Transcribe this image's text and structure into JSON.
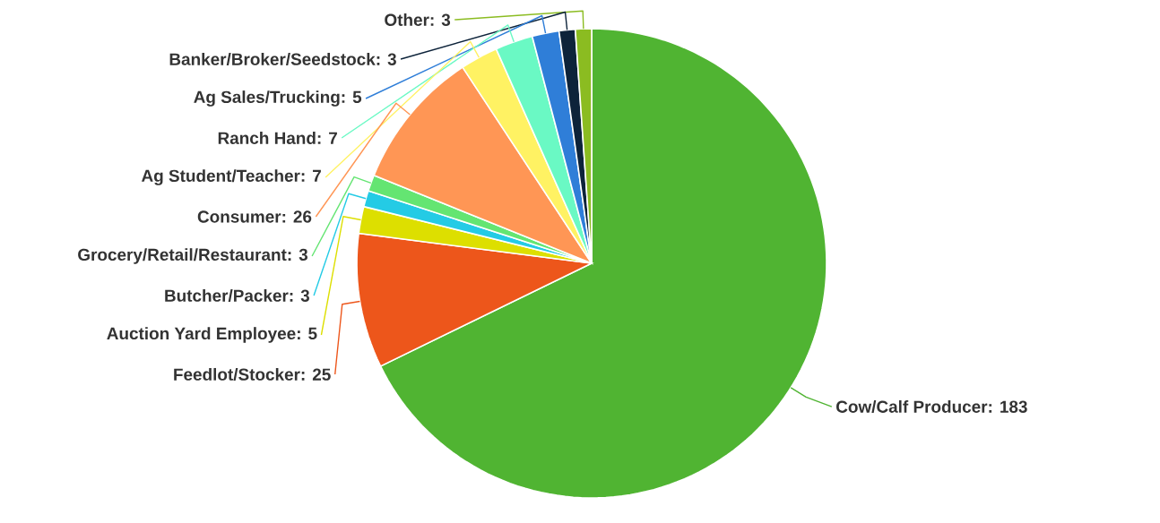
{
  "chart_data": {
    "type": "pie",
    "categories": [
      "Cow/Calf Producer",
      "Feedlot/Stocker",
      "Auction Yard Employee",
      "Butcher/Packer",
      "Grocery/Retail/Restaurant",
      "Consumer",
      "Ag Student/Teacher",
      "Ranch Hand",
      "Ag Sales/Trucking",
      "Banker/Broker/Seedstock",
      "Other"
    ],
    "values": [
      183,
      25,
      5,
      3,
      3,
      26,
      7,
      7,
      5,
      3,
      3
    ],
    "colors": [
      "#50b432",
      "#ed561b",
      "#dddf00",
      "#24cbe5",
      "#64e572",
      "#ff9655",
      "#fff263",
      "#6af9c4",
      "#2f7ed8",
      "#0d233a",
      "#8bbc21"
    ],
    "value_labels": [
      ": 183",
      ": 25",
      ": 5",
      ": 3",
      ": 3",
      ": 26",
      ": 7",
      ": 7",
      ": 5",
      ": 3",
      ": 3"
    ]
  }
}
